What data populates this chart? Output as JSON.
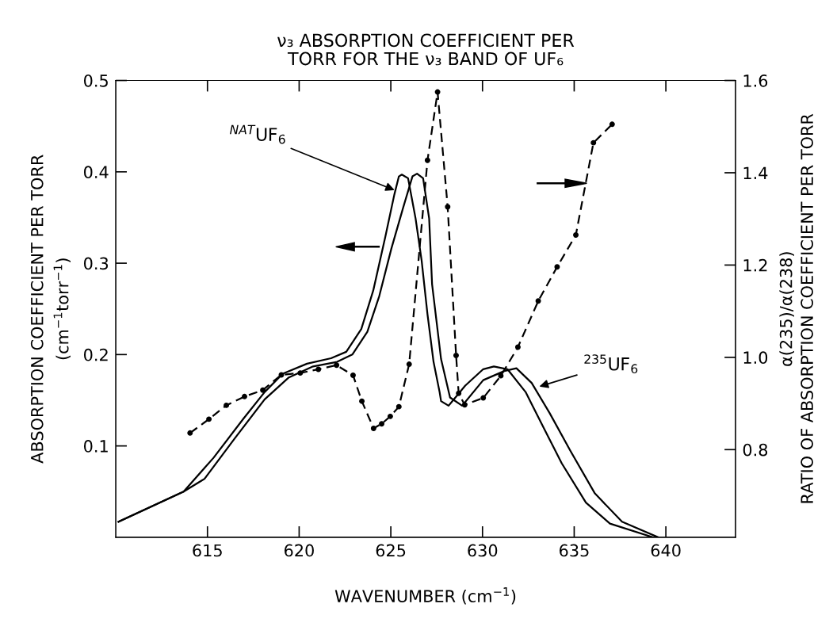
{
  "chart_data": {
    "type": "line",
    "title": "ν₃ ABSORPTION COEFFICIENT PER\nTORR FOR THE ν₃ BAND OF UF₆",
    "xlabel": "WAVENUMBER (cm$^{−1}$)",
    "ylabel": "ABSORPTION COEFFICIENT PER TORR\n(cm$^{−1}$torr$^{−1}$)",
    "y2label": "α(235)/α(238)\nRATIO OF ABSORPTION COEFFICIENT PER TORR",
    "xlim": [
      610,
      643.8
    ],
    "xticks": [
      615,
      620,
      625,
      630,
      635,
      640
    ],
    "ylim": [
      0,
      0.5
    ],
    "yticks": [
      0.1,
      0.2,
      0.3,
      0.4,
      0.5
    ],
    "y2lim": [
      0.61,
      1.6
    ],
    "y2ticks": [
      0.8,
      {
        "value": 1,
        "label": "1.0"
      },
      1.2,
      1.4,
      1.6
    ],
    "grid": false,
    "series": [
      {
        "color": "#000000",
        "line_style": "solid",
        "marker": "none",
        "x": [
          610.15,
          613.7,
          615.33,
          616.97,
          618.12,
          619.11,
          620.43,
          621.74,
          622.57,
          623.39,
          624.04,
          624.7,
          625.19,
          625.44,
          625.6,
          625.94,
          626.35,
          626.68,
          627.0,
          627.33,
          627.66,
          627.74,
          628.15,
          629.06,
          630.04,
          630.62,
          631.36,
          632.35,
          633.33,
          634.32,
          635.64,
          636.95,
          639.3
        ],
        "values": [
          0.017,
          0.05,
          0.087,
          0.13,
          0.159,
          0.179,
          0.19,
          0.196,
          0.203,
          0.228,
          0.27,
          0.329,
          0.375,
          0.395,
          0.397,
          0.393,
          0.349,
          0.303,
          0.244,
          0.192,
          0.159,
          0.149,
          0.144,
          0.166,
          0.184,
          0.187,
          0.184,
          0.159,
          0.12,
          0.081,
          0.038,
          0.015,
          0.0
        ]
      },
      {
        "color": "#000000",
        "line_style": "solid",
        "marker": "none",
        "x": [
          610.15,
          613.7,
          614.84,
          616.48,
          618.12,
          619.44,
          620.76,
          622.07,
          622.9,
          623.72,
          624.37,
          625.03,
          625.69,
          626.18,
          626.43,
          626.76,
          627.09,
          627.25,
          627.74,
          628.23,
          628.89,
          630.04,
          631.19,
          631.85,
          632.68,
          633.66,
          634.81,
          636.13,
          637.61,
          639.58
        ],
        "values": [
          0.017,
          0.05,
          0.064,
          0.108,
          0.151,
          0.175,
          0.187,
          0.192,
          0.2,
          0.225,
          0.264,
          0.316,
          0.362,
          0.395,
          0.398,
          0.393,
          0.349,
          0.277,
          0.195,
          0.153,
          0.144,
          0.172,
          0.182,
          0.185,
          0.169,
          0.136,
          0.094,
          0.048,
          0.017,
          0.0
        ]
      },
      {
        "color": "#000000",
        "line_style": "dashed",
        "marker": "circle",
        "axis": "y2",
        "x": [
          614.05,
          615.08,
          616.03,
          617.02,
          618.02,
          619.03,
          620.06,
          621.05,
          622.04,
          622.94,
          623.42,
          624.06,
          624.5,
          624.97,
          625.44,
          626.0,
          627.0,
          627.55,
          628.1,
          628.56,
          628.7,
          629.03,
          630.04,
          631.0,
          631.93,
          633.04,
          634.07,
          635.09,
          636.05,
          637.07
        ],
        "values": [
          0.836,
          0.866,
          0.896,
          0.915,
          0.929,
          0.962,
          0.966,
          0.974,
          0.983,
          0.961,
          0.905,
          0.846,
          0.856,
          0.872,
          0.893,
          0.985,
          1.427,
          1.575,
          1.326,
          1.004,
          0.922,
          0.897,
          0.912,
          0.96,
          1.022,
          1.122,
          1.196,
          1.265,
          1.465,
          1.505
        ]
      }
    ],
    "annotations": [
      {
        "text": "$^{NAT}$UF$_{6}$",
        "x": 625.2,
        "y": 0.38
      },
      {
        "text": "$^{235}$UF$_{6}$",
        "x": 633.1,
        "y": 0.165
      }
    ]
  }
}
